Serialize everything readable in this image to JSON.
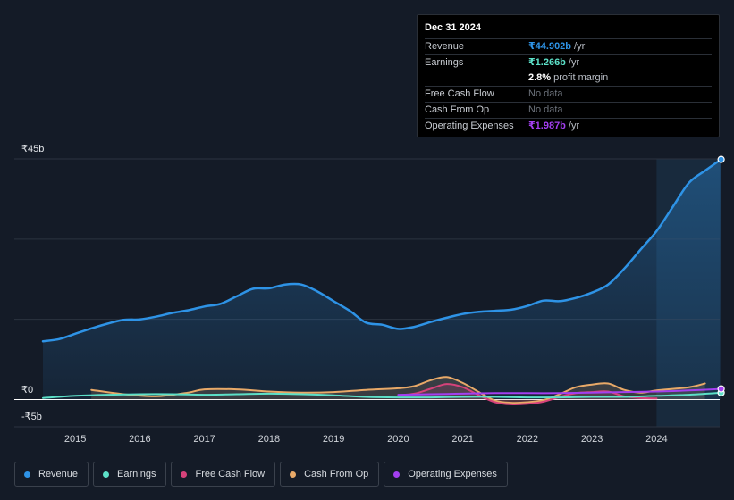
{
  "tooltip": {
    "date": "Dec 31 2024",
    "rows": {
      "revenue": {
        "label": "Revenue",
        "value": "₹44.902b",
        "unit": "/yr"
      },
      "earnings": {
        "label": "Earnings",
        "value": "₹1.266b",
        "unit": "/yr"
      },
      "margin": {
        "value": "2.8%",
        "unit": "profit margin"
      },
      "fcf": {
        "label": "Free Cash Flow",
        "value": "No data"
      },
      "cfo": {
        "label": "Cash From Op",
        "value": "No data"
      },
      "opex": {
        "label": "Operating Expenses",
        "value": "₹1.987b",
        "unit": "/yr"
      }
    }
  },
  "legend": {
    "revenue": "Revenue",
    "earnings": "Earnings",
    "fcf": "Free Cash Flow",
    "cfo": "Cash From Op",
    "opex": "Operating Expenses"
  },
  "colors": {
    "revenue": "#2e93e6",
    "earnings": "#5ce0c8",
    "fcf": "#d6427a",
    "cfo": "#e8a968",
    "opex": "#a33ff0",
    "background": "#141b27",
    "forecast_band": "#182a3d"
  },
  "chart_data": {
    "type": "line",
    "title": "",
    "xlabel": "",
    "ylabel": "",
    "y_tick_labels": [
      "₹45b",
      "₹0",
      "-₹5b"
    ],
    "x_tick_labels": [
      "2015",
      "2016",
      "2017",
      "2018",
      "2019",
      "2020",
      "2021",
      "2022",
      "2023",
      "2024"
    ],
    "ylim": [
      -5,
      45
    ],
    "xlim": [
      2014.47,
      2025.0
    ],
    "highlight_start": 2024.0,
    "series": [
      {
        "name": "Revenue",
        "key": "revenue",
        "filled": true,
        "x": [
          2014.5,
          2014.75,
          2015.0,
          2015.25,
          2015.5,
          2015.75,
          2016.0,
          2016.25,
          2016.5,
          2016.75,
          2017.0,
          2017.25,
          2017.5,
          2017.75,
          2018.0,
          2018.25,
          2018.5,
          2018.75,
          2019.0,
          2019.25,
          2019.5,
          2019.75,
          2020.0,
          2020.25,
          2020.5,
          2020.75,
          2021.0,
          2021.25,
          2021.5,
          2021.75,
          2022.0,
          2022.25,
          2022.5,
          2022.75,
          2023.0,
          2023.25,
          2023.5,
          2023.75,
          2024.0,
          2024.25,
          2024.5,
          2024.75,
          2025.0
        ],
        "y": [
          10.9,
          11.3,
          12.3,
          13.3,
          14.2,
          14.9,
          15.0,
          15.5,
          16.2,
          16.7,
          17.4,
          17.9,
          19.3,
          20.7,
          20.8,
          21.5,
          21.5,
          20.2,
          18.4,
          16.6,
          14.4,
          14.0,
          13.2,
          13.6,
          14.5,
          15.3,
          16.0,
          16.4,
          16.6,
          16.8,
          17.5,
          18.5,
          18.4,
          19.0,
          20.0,
          21.5,
          24.5,
          28.0,
          31.5,
          36.0,
          40.5,
          42.8,
          44.9
        ]
      },
      {
        "name": "Earnings",
        "key": "earnings",
        "filled": false,
        "x": [
          2014.5,
          2015.0,
          2015.5,
          2016.0,
          2016.5,
          2017.0,
          2017.5,
          2018.0,
          2018.5,
          2019.0,
          2019.5,
          2020.0,
          2020.5,
          2021.0,
          2021.5,
          2022.0,
          2022.5,
          2023.0,
          2023.5,
          2024.0,
          2024.5,
          2025.0
        ],
        "y": [
          0.3,
          0.7,
          0.9,
          1.0,
          1.0,
          0.9,
          1.0,
          1.1,
          1.0,
          0.8,
          0.5,
          0.4,
          0.4,
          0.5,
          0.5,
          0.4,
          0.4,
          0.5,
          0.5,
          0.7,
          0.9,
          1.27
        ]
      },
      {
        "name": "Free Cash Flow",
        "key": "fcf",
        "filled": false,
        "x": [
          2020.0,
          2020.25,
          2020.5,
          2020.75,
          2021.0,
          2021.25,
          2021.5,
          2021.75,
          2022.0,
          2022.25,
          2022.5,
          2022.75,
          2023.0,
          2023.25,
          2023.5,
          2023.75,
          2024.0
        ],
        "y": [
          0.8,
          1.1,
          2.0,
          2.9,
          2.3,
          0.8,
          -0.5,
          -0.9,
          -0.8,
          -0.4,
          0.5,
          1.2,
          1.4,
          1.5,
          0.6,
          0.3,
          0.2
        ]
      },
      {
        "name": "Cash From Op",
        "key": "cfo",
        "filled": false,
        "x": [
          2015.25,
          2015.75,
          2016.25,
          2016.75,
          2017.0,
          2017.5,
          2018.0,
          2018.5,
          2019.0,
          2019.5,
          2020.0,
          2020.25,
          2020.5,
          2020.75,
          2021.0,
          2021.25,
          2021.5,
          2021.75,
          2022.0,
          2022.25,
          2022.5,
          2022.75,
          2023.0,
          2023.25,
          2023.5,
          2023.75,
          2024.0,
          2024.5,
          2024.75
        ],
        "y": [
          1.8,
          1.0,
          0.6,
          1.3,
          1.9,
          1.9,
          1.5,
          1.3,
          1.4,
          1.8,
          2.1,
          2.5,
          3.6,
          4.2,
          3.1,
          1.4,
          -0.2,
          -0.6,
          -0.5,
          -0.1,
          1.0,
          2.3,
          2.8,
          3.0,
          1.8,
          1.3,
          1.7,
          2.3,
          3.0
        ]
      },
      {
        "name": "Operating Expenses",
        "key": "opex",
        "filled": false,
        "x": [
          2020.0,
          2020.5,
          2021.0,
          2021.5,
          2022.0,
          2022.5,
          2023.0,
          2023.5,
          2024.0,
          2024.5,
          2025.0
        ],
        "y": [
          0.9,
          1.0,
          1.1,
          1.2,
          1.2,
          1.2,
          1.3,
          1.4,
          1.5,
          1.7,
          1.99
        ]
      }
    ]
  }
}
